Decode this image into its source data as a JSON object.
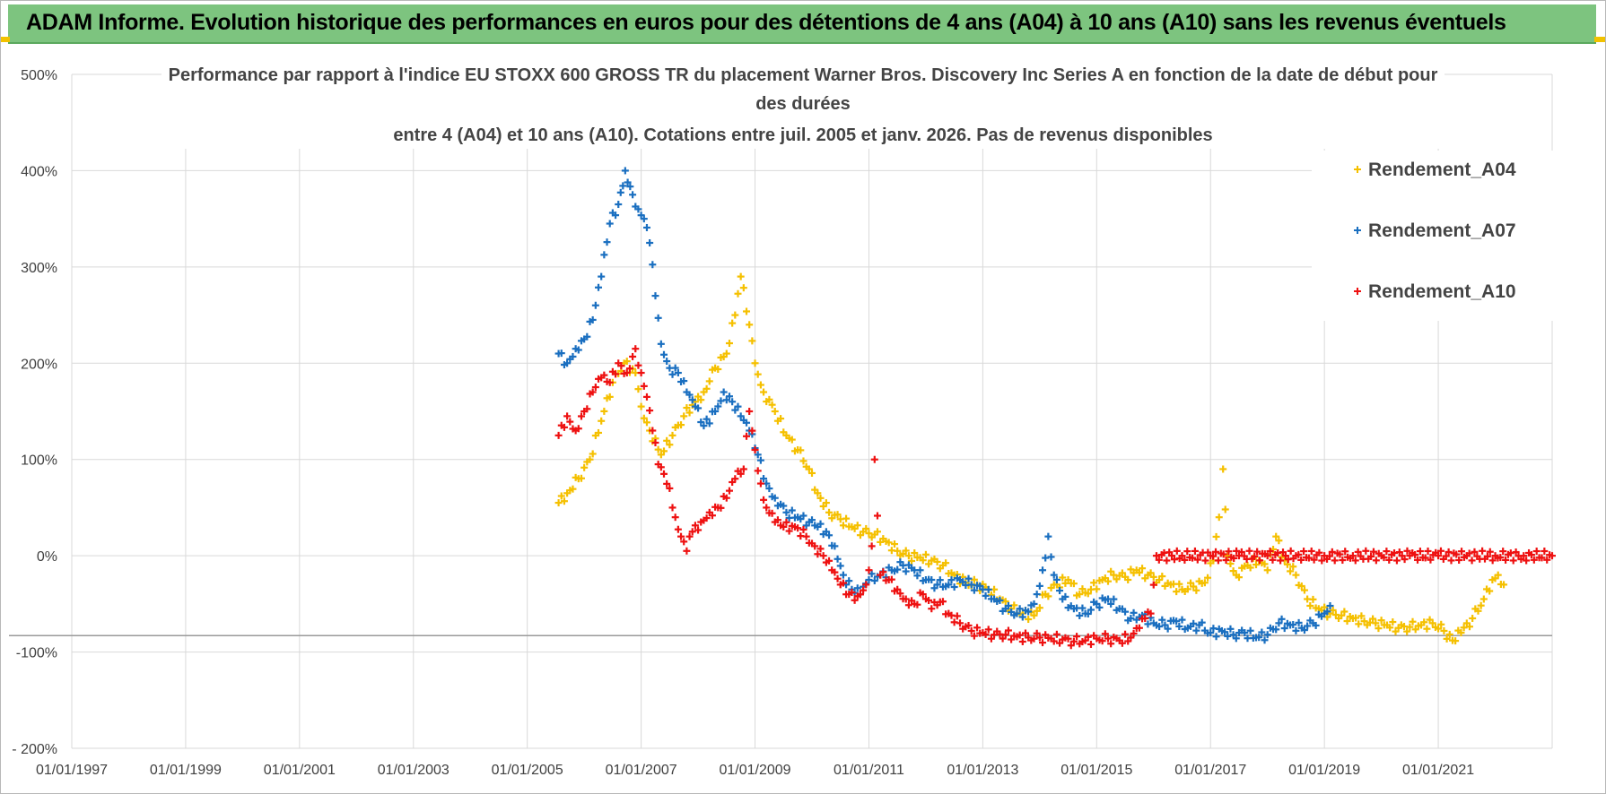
{
  "header": {
    "title": "ADAM Informe. Evolution historique des performances en euros pour des détentions de 4 ans (A04) à 10 ans (A10) sans les revenus éventuels"
  },
  "colors": {
    "banner": "#7dc47f",
    "a04": "#f5c000",
    "a07": "#1a6fc0",
    "a10": "#ee1111",
    "grid": "#d9d9d9",
    "baseline": "#9a9a9a"
  },
  "chart_data": {
    "type": "scatter",
    "title_lines": [
      "Performance par rapport à l'indice EU STOXX 600 GROSS TR  du placement Warner Bros. Discovery Inc Series A en fonction de la date de début pour",
      "des durées",
      "entre 4 (A04) et 10 ans (A10). Cotations entre juil. 2005 et janv. 2026. Pas de revenus disponibles"
    ],
    "xlabel": "",
    "ylabel": "",
    "xlim": [
      1997.0,
      2023.0
    ],
    "ylim": [
      -200,
      500
    ],
    "x_tick_values": [
      1997,
      1999,
      2001,
      2003,
      2005,
      2007,
      2009,
      2011,
      2013,
      2015,
      2017,
      2019,
      2021
    ],
    "x_tick_labels": [
      "01/01/1997",
      "01/01/1999",
      "01/01/2001",
      "01/01/2003",
      "01/01/2005",
      "01/01/2007",
      "01/01/2009",
      "01/01/2011",
      "01/01/2013",
      "01/01/2015",
      "01/01/2017",
      "01/01/2019",
      "01/01/2021"
    ],
    "y_tick_values": [
      -200,
      -100,
      0,
      100,
      200,
      300,
      400,
      500
    ],
    "y_tick_labels": [
      "- 200%",
      "-100%",
      "0%",
      "100%",
      "200%",
      "300%",
      "400%",
      "500%"
    ],
    "reference_line": -83,
    "grid": true,
    "legend_position": "top-right",
    "series": [
      {
        "name": "Rendement_A04",
        "color": "#f5c000",
        "points": [
          [
            2005.55,
            55
          ],
          [
            2005.7,
            65
          ],
          [
            2005.9,
            80
          ],
          [
            2006.1,
            100
          ],
          [
            2006.3,
            140
          ],
          [
            2006.5,
            180
          ],
          [
            2006.7,
            200
          ],
          [
            2006.9,
            190
          ],
          [
            2007.0,
            155
          ],
          [
            2007.15,
            130
          ],
          [
            2007.35,
            105
          ],
          [
            2007.55,
            125
          ],
          [
            2007.75,
            145
          ],
          [
            2007.95,
            160
          ],
          [
            2008.1,
            170
          ],
          [
            2008.3,
            195
          ],
          [
            2008.5,
            210
          ],
          [
            2008.65,
            250
          ],
          [
            2008.75,
            290
          ],
          [
            2008.9,
            240
          ],
          [
            2009.0,
            200
          ],
          [
            2009.15,
            170
          ],
          [
            2009.35,
            150
          ],
          [
            2009.55,
            125
          ],
          [
            2009.75,
            110
          ],
          [
            2009.95,
            90
          ],
          [
            2010.1,
            65
          ],
          [
            2010.3,
            45
          ],
          [
            2010.5,
            38
          ],
          [
            2010.7,
            30
          ],
          [
            2010.9,
            25
          ],
          [
            2011.1,
            22
          ],
          [
            2011.3,
            15
          ],
          [
            2011.5,
            5
          ],
          [
            2011.7,
            0
          ],
          [
            2011.9,
            -2
          ],
          [
            2012.1,
            -5
          ],
          [
            2012.3,
            -10
          ],
          [
            2012.5,
            -20
          ],
          [
            2012.7,
            -28
          ],
          [
            2012.9,
            -30
          ],
          [
            2013.1,
            -35
          ],
          [
            2013.3,
            -45
          ],
          [
            2013.5,
            -55
          ],
          [
            2013.7,
            -60
          ],
          [
            2013.9,
            -62
          ],
          [
            2014.1,
            -40
          ],
          [
            2014.3,
            -30
          ],
          [
            2014.5,
            -25
          ],
          [
            2014.7,
            -40
          ],
          [
            2014.9,
            -35
          ],
          [
            2015.1,
            -25
          ],
          [
            2015.3,
            -20
          ],
          [
            2015.5,
            -22
          ],
          [
            2015.7,
            -15
          ],
          [
            2015.9,
            -20
          ],
          [
            2016.1,
            -25
          ],
          [
            2016.3,
            -30
          ],
          [
            2016.5,
            -35
          ],
          [
            2016.7,
            -32
          ],
          [
            2016.9,
            -28
          ],
          [
            2017.05,
            -5
          ],
          [
            2017.15,
            40
          ],
          [
            2017.22,
            90
          ],
          [
            2017.3,
            0
          ],
          [
            2017.45,
            -20
          ],
          [
            2017.65,
            -10
          ],
          [
            2017.85,
            -5
          ],
          [
            2018.0,
            -15
          ],
          [
            2018.15,
            20
          ],
          [
            2018.3,
            -5
          ],
          [
            2018.5,
            -20
          ],
          [
            2018.7,
            -45
          ],
          [
            2018.9,
            -55
          ],
          [
            2019.1,
            -60
          ],
          [
            2019.3,
            -62
          ],
          [
            2019.5,
            -65
          ],
          [
            2019.7,
            -68
          ],
          [
            2019.9,
            -70
          ],
          [
            2020.1,
            -72
          ],
          [
            2020.3,
            -75
          ],
          [
            2020.5,
            -74
          ],
          [
            2020.7,
            -72
          ],
          [
            2020.9,
            -70
          ],
          [
            2021.1,
            -78
          ],
          [
            2021.25,
            -88
          ],
          [
            2021.4,
            -80
          ],
          [
            2021.6,
            -65
          ],
          [
            2021.8,
            -45
          ],
          [
            2021.95,
            -25
          ],
          [
            2022.05,
            -20
          ],
          [
            2022.15,
            -30
          ]
        ]
      },
      {
        "name": "Rendement_A07",
        "color": "#1a6fc0",
        "points": [
          [
            2005.55,
            210
          ],
          [
            2005.7,
            200
          ],
          [
            2005.85,
            215
          ],
          [
            2006.0,
            225
          ],
          [
            2006.15,
            245
          ],
          [
            2006.3,
            290
          ],
          [
            2006.45,
            345
          ],
          [
            2006.6,
            365
          ],
          [
            2006.72,
            400
          ],
          [
            2006.85,
            375
          ],
          [
            2006.95,
            360
          ],
          [
            2007.05,
            350
          ],
          [
            2007.15,
            325
          ],
          [
            2007.25,
            270
          ],
          [
            2007.35,
            220
          ],
          [
            2007.5,
            195
          ],
          [
            2007.65,
            190
          ],
          [
            2007.8,
            170
          ],
          [
            2007.95,
            155
          ],
          [
            2008.1,
            135
          ],
          [
            2008.3,
            150
          ],
          [
            2008.45,
            170
          ],
          [
            2008.6,
            160
          ],
          [
            2008.75,
            145
          ],
          [
            2008.9,
            130
          ],
          [
            2009.05,
            105
          ],
          [
            2009.2,
            75
          ],
          [
            2009.35,
            60
          ],
          [
            2009.55,
            45
          ],
          [
            2009.75,
            40
          ],
          [
            2009.95,
            35
          ],
          [
            2010.1,
            30
          ],
          [
            2010.25,
            25
          ],
          [
            2010.4,
            10
          ],
          [
            2010.55,
            -20
          ],
          [
            2010.7,
            -35
          ],
          [
            2010.85,
            -40
          ],
          [
            2011.0,
            -25
          ],
          [
            2011.2,
            -20
          ],
          [
            2011.4,
            -15
          ],
          [
            2011.6,
            -10
          ],
          [
            2011.8,
            -15
          ],
          [
            2012.0,
            -25
          ],
          [
            2012.2,
            -30
          ],
          [
            2012.4,
            -30
          ],
          [
            2012.6,
            -25
          ],
          [
            2012.8,
            -30
          ],
          [
            2013.0,
            -35
          ],
          [
            2013.2,
            -45
          ],
          [
            2013.4,
            -55
          ],
          [
            2013.6,
            -60
          ],
          [
            2013.8,
            -58
          ],
          [
            2013.95,
            -40
          ],
          [
            2014.05,
            -15
          ],
          [
            2014.15,
            20
          ],
          [
            2014.25,
            -20
          ],
          [
            2014.4,
            -45
          ],
          [
            2014.6,
            -55
          ],
          [
            2014.8,
            -60
          ],
          [
            2015.0,
            -50
          ],
          [
            2015.2,
            -45
          ],
          [
            2015.4,
            -55
          ],
          [
            2015.6,
            -65
          ],
          [
            2015.8,
            -62
          ],
          [
            2016.0,
            -70
          ],
          [
            2016.2,
            -72
          ],
          [
            2016.4,
            -68
          ],
          [
            2016.6,
            -75
          ],
          [
            2016.8,
            -72
          ],
          [
            2017.0,
            -80
          ],
          [
            2017.2,
            -78
          ],
          [
            2017.4,
            -82
          ],
          [
            2017.6,
            -80
          ],
          [
            2017.8,
            -85
          ],
          [
            2018.0,
            -82
          ],
          [
            2018.2,
            -70
          ],
          [
            2018.4,
            -72
          ],
          [
            2018.6,
            -75
          ],
          [
            2018.8,
            -70
          ],
          [
            2019.0,
            -60
          ],
          [
            2019.1,
            -52
          ]
        ]
      },
      {
        "name": "Rendement_A10",
        "color": "#ee1111",
        "points": [
          [
            2005.55,
            125
          ],
          [
            2005.7,
            145
          ],
          [
            2005.85,
            130
          ],
          [
            2006.0,
            150
          ],
          [
            2006.15,
            170
          ],
          [
            2006.3,
            185
          ],
          [
            2006.45,
            180
          ],
          [
            2006.6,
            200
          ],
          [
            2006.75,
            190
          ],
          [
            2006.9,
            215
          ],
          [
            2007.0,
            190
          ],
          [
            2007.1,
            165
          ],
          [
            2007.2,
            130
          ],
          [
            2007.3,
            95
          ],
          [
            2007.4,
            85
          ],
          [
            2007.5,
            70
          ],
          [
            2007.6,
            40
          ],
          [
            2007.7,
            20
          ],
          [
            2007.8,
            5
          ],
          [
            2007.9,
            25
          ],
          [
            2008.05,
            35
          ],
          [
            2008.2,
            45
          ],
          [
            2008.35,
            50
          ],
          [
            2008.5,
            60
          ],
          [
            2008.65,
            80
          ],
          [
            2008.8,
            90
          ],
          [
            2008.9,
            150
          ],
          [
            2009.0,
            110
          ],
          [
            2009.1,
            75
          ],
          [
            2009.2,
            50
          ],
          [
            2009.35,
            35
          ],
          [
            2009.5,
            30
          ],
          [
            2009.7,
            30
          ],
          [
            2009.9,
            20
          ],
          [
            2010.05,
            10
          ],
          [
            2010.2,
            0
          ],
          [
            2010.35,
            -15
          ],
          [
            2010.5,
            -30
          ],
          [
            2010.65,
            -40
          ],
          [
            2010.8,
            -42
          ],
          [
            2010.95,
            -30
          ],
          [
            2011.05,
            10
          ],
          [
            2011.1,
            100
          ],
          [
            2011.2,
            -20
          ],
          [
            2011.35,
            -25
          ],
          [
            2011.5,
            -35
          ],
          [
            2011.65,
            -45
          ],
          [
            2011.8,
            -50
          ],
          [
            2011.95,
            -40
          ],
          [
            2012.1,
            -55
          ],
          [
            2012.25,
            -48
          ],
          [
            2012.4,
            -60
          ],
          [
            2012.6,
            -70
          ],
          [
            2012.8,
            -78
          ],
          [
            2013.0,
            -80
          ],
          [
            2013.2,
            -82
          ],
          [
            2013.4,
            -82
          ],
          [
            2013.6,
            -84
          ],
          [
            2013.8,
            -85
          ],
          [
            2014.0,
            -85
          ],
          [
            2014.2,
            -86
          ],
          [
            2014.4,
            -87
          ],
          [
            2014.6,
            -89
          ],
          [
            2014.8,
            -88
          ],
          [
            2015.0,
            -86
          ],
          [
            2015.2,
            -86
          ],
          [
            2015.4,
            -88
          ],
          [
            2015.6,
            -85
          ],
          [
            2015.75,
            -75
          ],
          [
            2015.85,
            -65
          ],
          [
            2015.95,
            -60
          ],
          [
            2016.05,
            0
          ],
          [
            2016.5,
            0
          ],
          [
            2017.0,
            0
          ],
          [
            2017.5,
            0
          ],
          [
            2018.0,
            0
          ],
          [
            2018.5,
            0
          ],
          [
            2019.0,
            0
          ],
          [
            2019.5,
            0
          ],
          [
            2020.0,
            0
          ],
          [
            2020.5,
            0
          ],
          [
            2021.0,
            0
          ],
          [
            2021.5,
            0
          ],
          [
            2022.0,
            0
          ],
          [
            2022.5,
            0
          ],
          [
            2023.0,
            0
          ]
        ]
      }
    ]
  }
}
